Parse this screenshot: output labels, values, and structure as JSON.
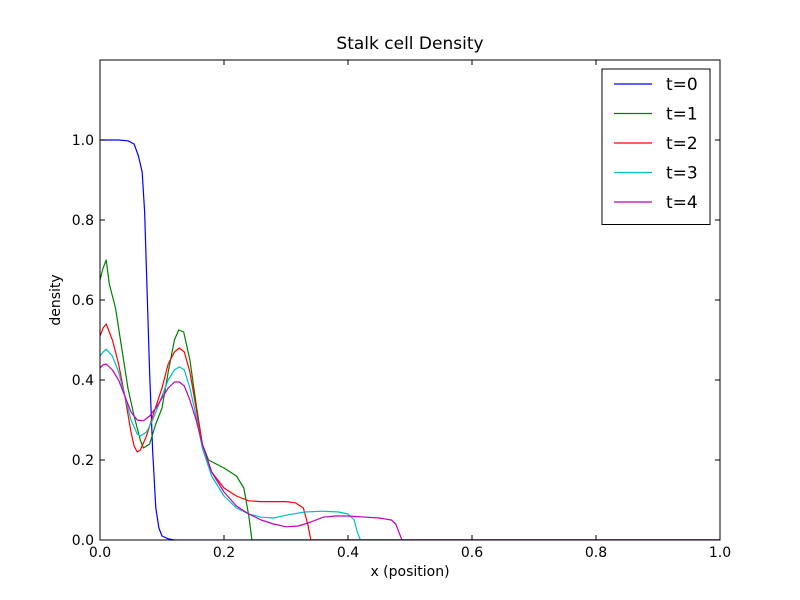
{
  "chart_data": {
    "type": "line",
    "title": "Stalk cell Density",
    "xlabel": "x (position)",
    "ylabel": "density",
    "xlim": [
      0.0,
      1.0
    ],
    "ylim": [
      0.0,
      1.2
    ],
    "xticks": [
      "0.0",
      "0.2",
      "0.4",
      "0.6",
      "0.8",
      "1.0"
    ],
    "yticks": [
      "0.0",
      "0.2",
      "0.4",
      "0.6",
      "0.8",
      "1.0"
    ],
    "ytick_values": [
      0.0,
      0.2,
      0.4,
      0.6,
      0.8,
      1.0
    ],
    "xtick_values": [
      0.0,
      0.2,
      0.4,
      0.6,
      0.8,
      1.0
    ],
    "legend_position": "top-right",
    "grid": false,
    "series": [
      {
        "name": "t=0",
        "color": "#0000ff",
        "points": [
          [
            0,
            1.0
          ],
          [
            0.03,
            1.0
          ],
          [
            0.045,
            0.998
          ],
          [
            0.055,
            0.99
          ],
          [
            0.062,
            0.96
          ],
          [
            0.068,
            0.92
          ],
          [
            0.072,
            0.82
          ],
          [
            0.076,
            0.62
          ],
          [
            0.08,
            0.42
          ],
          [
            0.085,
            0.22
          ],
          [
            0.09,
            0.08
          ],
          [
            0.095,
            0.03
          ],
          [
            0.1,
            0.01
          ],
          [
            0.11,
            0.003
          ],
          [
            0.12,
            0.0
          ],
          [
            0.2,
            0.0
          ],
          [
            0.6,
            0.0
          ],
          [
            1.0,
            0.0
          ]
        ]
      },
      {
        "name": "t=1",
        "color": "#008000",
        "points": [
          [
            0,
            0.65
          ],
          [
            0.005,
            0.68
          ],
          [
            0.01,
            0.7
          ],
          [
            0.015,
            0.64
          ],
          [
            0.025,
            0.58
          ],
          [
            0.035,
            0.48
          ],
          [
            0.045,
            0.38
          ],
          [
            0.055,
            0.31
          ],
          [
            0.065,
            0.25
          ],
          [
            0.07,
            0.23
          ],
          [
            0.08,
            0.24
          ],
          [
            0.09,
            0.29
          ],
          [
            0.1,
            0.33
          ],
          [
            0.11,
            0.42
          ],
          [
            0.12,
            0.5
          ],
          [
            0.127,
            0.525
          ],
          [
            0.135,
            0.52
          ],
          [
            0.145,
            0.45
          ],
          [
            0.155,
            0.34
          ],
          [
            0.165,
            0.24
          ],
          [
            0.175,
            0.2
          ],
          [
            0.2,
            0.18
          ],
          [
            0.22,
            0.16
          ],
          [
            0.232,
            0.13
          ],
          [
            0.24,
            0.06
          ],
          [
            0.245,
            0.0
          ],
          [
            0.3,
            0.0
          ],
          [
            0.6,
            0.0
          ],
          [
            1.0,
            0.0
          ]
        ]
      },
      {
        "name": "t=2",
        "color": "#ff0000",
        "points": [
          [
            0,
            0.51
          ],
          [
            0.005,
            0.53
          ],
          [
            0.01,
            0.54
          ],
          [
            0.02,
            0.5
          ],
          [
            0.03,
            0.44
          ],
          [
            0.04,
            0.36
          ],
          [
            0.05,
            0.27
          ],
          [
            0.055,
            0.235
          ],
          [
            0.06,
            0.22
          ],
          [
            0.065,
            0.225
          ],
          [
            0.075,
            0.26
          ],
          [
            0.085,
            0.31
          ],
          [
            0.1,
            0.38
          ],
          [
            0.11,
            0.44
          ],
          [
            0.12,
            0.47
          ],
          [
            0.128,
            0.48
          ],
          [
            0.136,
            0.47
          ],
          [
            0.145,
            0.42
          ],
          [
            0.155,
            0.33
          ],
          [
            0.165,
            0.24
          ],
          [
            0.18,
            0.17
          ],
          [
            0.2,
            0.13
          ],
          [
            0.22,
            0.11
          ],
          [
            0.24,
            0.098
          ],
          [
            0.26,
            0.096
          ],
          [
            0.3,
            0.096
          ],
          [
            0.315,
            0.093
          ],
          [
            0.328,
            0.08
          ],
          [
            0.335,
            0.04
          ],
          [
            0.34,
            0.0
          ],
          [
            0.4,
            0.0
          ],
          [
            0.6,
            0.0
          ],
          [
            1.0,
            0.0
          ]
        ]
      },
      {
        "name": "t=3",
        "color": "#00bfbf",
        "points": [
          [
            0,
            0.46
          ],
          [
            0.005,
            0.47
          ],
          [
            0.01,
            0.477
          ],
          [
            0.02,
            0.46
          ],
          [
            0.03,
            0.42
          ],
          [
            0.04,
            0.36
          ],
          [
            0.05,
            0.3
          ],
          [
            0.06,
            0.265
          ],
          [
            0.065,
            0.26
          ],
          [
            0.075,
            0.27
          ],
          [
            0.085,
            0.3
          ],
          [
            0.1,
            0.36
          ],
          [
            0.11,
            0.4
          ],
          [
            0.12,
            0.425
          ],
          [
            0.128,
            0.433
          ],
          [
            0.136,
            0.425
          ],
          [
            0.145,
            0.38
          ],
          [
            0.155,
            0.31
          ],
          [
            0.165,
            0.23
          ],
          [
            0.18,
            0.16
          ],
          [
            0.2,
            0.11
          ],
          [
            0.22,
            0.08
          ],
          [
            0.24,
            0.065
          ],
          [
            0.26,
            0.057
          ],
          [
            0.28,
            0.055
          ],
          [
            0.3,
            0.062
          ],
          [
            0.33,
            0.07
          ],
          [
            0.36,
            0.072
          ],
          [
            0.385,
            0.07
          ],
          [
            0.4,
            0.065
          ],
          [
            0.41,
            0.05
          ],
          [
            0.415,
            0.02
          ],
          [
            0.42,
            0.0
          ],
          [
            0.5,
            0.0
          ],
          [
            0.6,
            0.0
          ],
          [
            1.0,
            0.0
          ]
        ]
      },
      {
        "name": "t=4",
        "color": "#bf00bf",
        "points": [
          [
            0,
            0.43
          ],
          [
            0.005,
            0.438
          ],
          [
            0.01,
            0.44
          ],
          [
            0.02,
            0.425
          ],
          [
            0.03,
            0.4
          ],
          [
            0.04,
            0.36
          ],
          [
            0.05,
            0.32
          ],
          [
            0.06,
            0.3
          ],
          [
            0.07,
            0.298
          ],
          [
            0.08,
            0.31
          ],
          [
            0.09,
            0.33
          ],
          [
            0.1,
            0.355
          ],
          [
            0.11,
            0.38
          ],
          [
            0.12,
            0.395
          ],
          [
            0.128,
            0.395
          ],
          [
            0.136,
            0.385
          ],
          [
            0.145,
            0.35
          ],
          [
            0.155,
            0.3
          ],
          [
            0.165,
            0.24
          ],
          [
            0.18,
            0.17
          ],
          [
            0.2,
            0.12
          ],
          [
            0.22,
            0.085
          ],
          [
            0.24,
            0.065
          ],
          [
            0.26,
            0.05
          ],
          [
            0.28,
            0.04
          ],
          [
            0.3,
            0.033
          ],
          [
            0.32,
            0.035
          ],
          [
            0.34,
            0.045
          ],
          [
            0.36,
            0.057
          ],
          [
            0.38,
            0.06
          ],
          [
            0.4,
            0.06
          ],
          [
            0.42,
            0.058
          ],
          [
            0.45,
            0.055
          ],
          [
            0.47,
            0.05
          ],
          [
            0.477,
            0.04
          ],
          [
            0.482,
            0.02
          ],
          [
            0.487,
            0.0
          ],
          [
            0.6,
            0.0
          ],
          [
            1.0,
            0.0
          ]
        ]
      }
    ]
  }
}
